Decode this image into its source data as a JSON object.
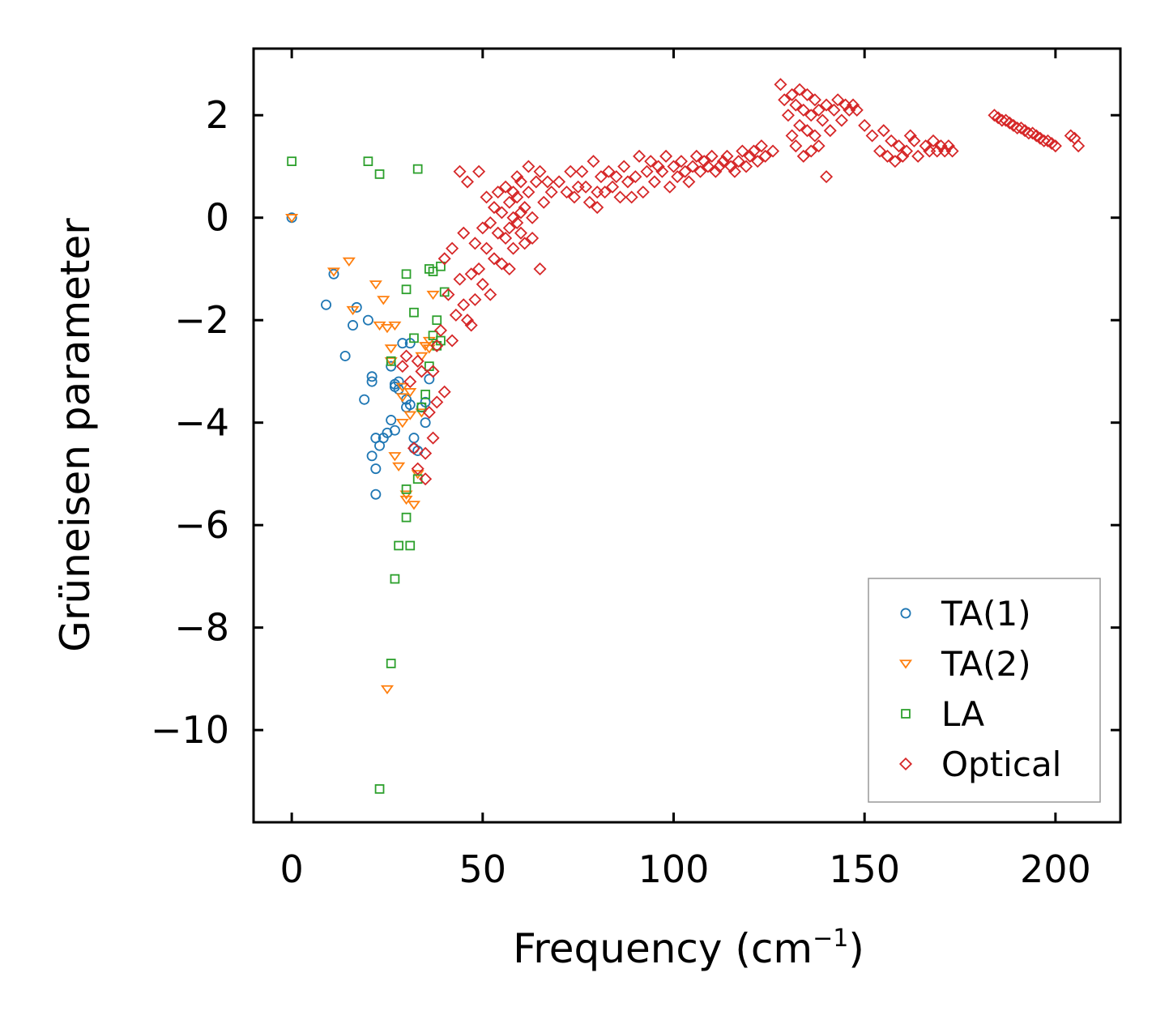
{
  "chart_data": {
    "type": "scatter",
    "title": "",
    "xlabel": "Frequency (cm",
    "xlabel_sup": "−1",
    "xlabel_close": ")",
    "ylabel": "Grüneisen parameter",
    "xlim": [
      -10,
      217
    ],
    "ylim": [
      -11.8,
      3.3
    ],
    "xticks": [
      0,
      50,
      100,
      150,
      200
    ],
    "xtick_labels": [
      "0",
      "50",
      "100",
      "150",
      "200"
    ],
    "yticks": [
      2,
      0,
      -2,
      -4,
      -6,
      -8,
      -10
    ],
    "ytick_labels": [
      "2",
      "0",
      "−2",
      "−4",
      "−6",
      "−8",
      "−10"
    ],
    "grid": false,
    "legend_position": "lower-right",
    "series": [
      {
        "name": "TA(1)",
        "marker": "circle",
        "color": "#1f77b4",
        "x": [
          0,
          9,
          11,
          14,
          16,
          17,
          19,
          20,
          21,
          21,
          21,
          22,
          22,
          22,
          23,
          24,
          25,
          26,
          26,
          27,
          27,
          27,
          28,
          28,
          29,
          30,
          30,
          31,
          31,
          32,
          32,
          33,
          34,
          35,
          35,
          36
        ],
        "y": [
          0,
          -1.7,
          -1.1,
          -2.7,
          -2.1,
          -1.75,
          -3.55,
          -2.0,
          -3.1,
          -3.2,
          -4.65,
          -5.4,
          -4.9,
          -4.3,
          -4.45,
          -4.3,
          -4.2,
          -2.9,
          -3.95,
          -4.15,
          -3.3,
          -3.25,
          -3.35,
          -3.2,
          -2.45,
          -3.55,
          -3.7,
          -3.65,
          -2.45,
          -4.3,
          -4.5,
          -4.55,
          -3.7,
          -3.6,
          -4.0,
          -3.15
        ]
      },
      {
        "name": "TA(2)",
        "marker": "triangle-down",
        "color": "#ff7f0e",
        "x": [
          0,
          11,
          15,
          16,
          22,
          23,
          24,
          25,
          25,
          26,
          26,
          27,
          27,
          28,
          29,
          29,
          29,
          30,
          30,
          31,
          31,
          32,
          33,
          34,
          34,
          35,
          36,
          36,
          37
        ],
        "y": [
          0,
          -1.05,
          -0.85,
          -1.8,
          -1.3,
          -2.1,
          -1.6,
          -2.15,
          -9.2,
          -2.8,
          -2.55,
          -2.1,
          -4.65,
          -4.85,
          -3.3,
          -3.5,
          -4.0,
          -5.4,
          -5.5,
          -3.85,
          -3.4,
          -5.6,
          -5.0,
          -2.7,
          -3.8,
          -2.5,
          -2.4,
          -2.55,
          -1.5
        ]
      },
      {
        "name": "LA",
        "marker": "square",
        "color": "#2ca02c",
        "x": [
          0,
          20,
          23,
          23,
          26,
          26,
          27,
          28,
          30,
          30,
          30,
          30,
          31,
          32,
          32,
          33,
          33,
          34,
          35,
          36,
          36,
          37,
          37,
          38,
          38,
          39,
          39,
          40
        ],
        "y": [
          1.1,
          1.1,
          0.85,
          -11.15,
          -2.8,
          -8.7,
          -7.05,
          -6.4,
          -1.1,
          -1.4,
          -5.3,
          -5.85,
          -6.4,
          -2.35,
          -1.85,
          0.95,
          -5.1,
          -3.7,
          -3.45,
          -1.0,
          -2.9,
          -2.3,
          -1.05,
          -2.0,
          -2.5,
          -0.95,
          -2.4,
          -1.45
        ]
      },
      {
        "name": "Optical",
        "marker": "diamond",
        "color": "#d62728",
        "x": [
          29,
          30,
          31,
          32,
          33,
          33,
          34,
          35,
          35,
          36,
          37,
          37,
          38,
          38,
          39,
          40,
          40,
          41,
          42,
          42,
          43,
          44,
          44,
          45,
          45,
          46,
          46,
          47,
          47,
          48,
          48,
          49,
          49,
          50,
          50,
          51,
          51,
          52,
          52,
          53,
          53,
          54,
          54,
          55,
          55,
          56,
          56,
          57,
          57,
          57,
          58,
          58,
          58,
          59,
          59,
          59,
          60,
          60,
          60,
          61,
          61,
          62,
          62,
          63,
          63,
          64,
          65,
          65,
          66,
          67,
          68,
          70,
          72,
          73,
          74,
          75,
          76,
          77,
          78,
          79,
          80,
          80,
          81,
          82,
          83,
          84,
          85,
          86,
          87,
          88,
          89,
          90,
          91,
          92,
          93,
          94,
          95,
          96,
          97,
          98,
          99,
          100,
          101,
          102,
          103,
          104,
          105,
          106,
          107,
          108,
          109,
          110,
          111,
          112,
          113,
          114,
          115,
          116,
          117,
          118,
          119,
          120,
          121,
          122,
          123,
          124,
          126,
          128,
          129,
          130,
          131,
          131,
          132,
          132,
          133,
          133,
          134,
          134,
          135,
          135,
          136,
          136,
          137,
          137,
          138,
          138,
          139,
          140,
          140,
          141,
          142,
          143,
          144,
          145,
          146,
          147,
          148,
          150,
          152,
          154,
          155,
          156,
          157,
          158,
          159,
          160,
          161,
          162,
          163,
          164,
          166,
          167,
          168,
          169,
          170,
          171,
          172,
          173,
          184,
          185,
          186,
          187,
          188,
          189,
          190,
          191,
          192,
          193,
          194,
          195,
          196,
          197,
          198,
          199,
          200,
          204,
          205,
          206
        ],
        "y": [
          -2.9,
          -2.7,
          -3.2,
          -4.5,
          -2.8,
          -4.9,
          -3.0,
          -5.1,
          -4.6,
          -3.8,
          -4.3,
          -3.0,
          -2.5,
          -3.6,
          -2.2,
          -3.4,
          -0.8,
          -1.5,
          -2.4,
          -0.6,
          -1.9,
          -1.2,
          0.9,
          -1.7,
          -0.3,
          -2.0,
          0.7,
          -1.1,
          -2.1,
          -0.5,
          -1.6,
          -1.0,
          0.9,
          -1.3,
          -0.2,
          -0.6,
          0.4,
          -1.5,
          -0.1,
          -0.8,
          0.2,
          -0.3,
          0.5,
          -0.9,
          0.1,
          -0.4,
          0.6,
          -0.2,
          0.3,
          -1.0,
          0.0,
          0.5,
          -0.6,
          -0.1,
          0.4,
          0.8,
          0.1,
          -0.3,
          0.7,
          0.2,
          -0.5,
          0.5,
          1.0,
          0.0,
          -0.4,
          0.7,
          0.9,
          -1.0,
          0.3,
          0.7,
          0.5,
          0.7,
          0.5,
          0.9,
          0.4,
          0.6,
          0.9,
          0.6,
          0.3,
          1.1,
          0.5,
          0.2,
          0.8,
          0.5,
          0.9,
          0.6,
          0.8,
          0.4,
          1.0,
          0.7,
          0.4,
          0.8,
          1.2,
          0.5,
          0.9,
          1.1,
          0.7,
          1.0,
          0.9,
          1.2,
          0.6,
          1.0,
          0.8,
          1.1,
          0.9,
          0.7,
          1.0,
          1.2,
          0.9,
          1.1,
          1.0,
          1.2,
          0.9,
          1.0,
          1.1,
          1.2,
          1.0,
          0.9,
          1.1,
          1.3,
          1.0,
          1.2,
          1.3,
          1.1,
          1.4,
          1.2,
          1.3,
          2.6,
          2.3,
          2.0,
          2.4,
          1.6,
          2.2,
          1.4,
          2.5,
          1.8,
          2.1,
          1.2,
          2.4,
          1.7,
          2.0,
          1.3,
          2.3,
          1.6,
          2.1,
          1.4,
          1.9,
          0.8,
          2.2,
          1.7,
          2.1,
          2.3,
          1.9,
          2.2,
          2.1,
          2.2,
          2.1,
          1.8,
          1.6,
          1.3,
          1.7,
          1.2,
          1.5,
          1.1,
          1.4,
          1.2,
          1.3,
          1.6,
          1.5,
          1.2,
          1.4,
          1.3,
          1.5,
          1.3,
          1.4,
          1.3,
          1.4,
          1.3,
          2.0,
          1.95,
          1.9,
          1.9,
          1.85,
          1.8,
          1.75,
          1.75,
          1.7,
          1.65,
          1.65,
          1.6,
          1.55,
          1.5,
          1.5,
          1.45,
          1.4,
          1.6,
          1.55,
          1.4
        ]
      }
    ]
  }
}
